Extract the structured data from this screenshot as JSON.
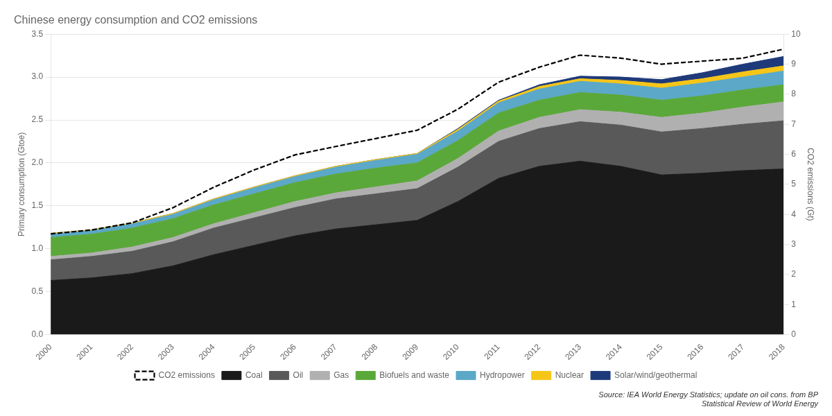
{
  "chart_data": {
    "type": "area",
    "title": "Chinese energy consumption and CO2 emissions",
    "x_label": null,
    "y_label": "Primary consumption (Gtoe)",
    "y2_label": "CO2 emissions (Gt)",
    "annotations": [
      "Source: IEA World Energy Statistics; update on oil cons. from BP",
      "Statistical Review of World Energy"
    ],
    "x": [
      2000,
      2001,
      2002,
      2003,
      2004,
      2005,
      2006,
      2007,
      2008,
      2009,
      2010,
      2011,
      2012,
      2013,
      2014,
      2015,
      2016,
      2017,
      2018
    ],
    "xlim": [
      2000,
      2018
    ],
    "xticks": [
      2000,
      2001,
      2002,
      2003,
      2004,
      2005,
      2006,
      2007,
      2008,
      2009,
      2010,
      2011,
      2012,
      2013,
      2014,
      2015,
      2016,
      2017,
      2018
    ],
    "ylim": [
      0,
      3.5
    ],
    "yticks": [
      {
        "value": 0,
        "label": "0.0"
      },
      0.5,
      {
        "value": 1,
        "label": "1.0"
      },
      1.5,
      {
        "value": 2,
        "label": "2.0"
      },
      2.5,
      {
        "value": 3,
        "label": "3.0"
      },
      3.5
    ],
    "y2lim": [
      0,
      10
    ],
    "y2ticks": [
      0,
      1,
      2,
      3,
      4,
      5,
      6,
      7,
      8,
      9,
      10
    ],
    "stacked": true,
    "grid": true,
    "legend": "bottom",
    "series": [
      {
        "name": "Coal",
        "color": "#1a1a1a",
        "values": [
          0.63,
          0.66,
          0.71,
          0.8,
          0.93,
          1.04,
          1.15,
          1.23,
          1.28,
          1.33,
          1.55,
          1.82,
          1.96,
          2.02,
          1.96,
          1.86,
          1.88,
          1.91,
          1.93
        ]
      },
      {
        "name": "Oil",
        "color": "#595959",
        "values": [
          0.24,
          0.25,
          0.26,
          0.28,
          0.31,
          0.32,
          0.33,
          0.35,
          0.36,
          0.37,
          0.4,
          0.43,
          0.44,
          0.46,
          0.48,
          0.5,
          0.52,
          0.54,
          0.56
        ]
      },
      {
        "name": "Gas",
        "color": "#b0b0b0",
        "values": [
          0.04,
          0.04,
          0.05,
          0.05,
          0.05,
          0.06,
          0.07,
          0.07,
          0.08,
          0.09,
          0.1,
          0.12,
          0.13,
          0.14,
          0.15,
          0.17,
          0.18,
          0.2,
          0.22
        ]
      },
      {
        "name": "Biofuels and waste",
        "color": "#5ba83a",
        "values": [
          0.22,
          0.22,
          0.22,
          0.22,
          0.22,
          0.22,
          0.22,
          0.22,
          0.22,
          0.21,
          0.21,
          0.21,
          0.2,
          0.2,
          0.2,
          0.2,
          0.2,
          0.2,
          0.2
        ]
      },
      {
        "name": "Hydropower",
        "color": "#5ba8c8",
        "values": [
          0.04,
          0.04,
          0.05,
          0.05,
          0.06,
          0.07,
          0.07,
          0.08,
          0.09,
          0.1,
          0.11,
          0.12,
          0.13,
          0.13,
          0.13,
          0.14,
          0.15,
          0.15,
          0.16
        ]
      },
      {
        "name": "Nuclear",
        "color": "#f5c518",
        "values": [
          0.01,
          0.01,
          0.01,
          0.01,
          0.01,
          0.01,
          0.01,
          0.01,
          0.01,
          0.01,
          0.02,
          0.02,
          0.03,
          0.03,
          0.04,
          0.05,
          0.05,
          0.06,
          0.06
        ]
      },
      {
        "name": "Solar/wind/geothermal",
        "color": "#1f3a7a",
        "values": [
          0.0,
          0.0,
          0.0,
          0.0,
          0.0,
          0.0,
          0.0,
          0.0,
          0.0,
          0.0,
          0.01,
          0.01,
          0.02,
          0.03,
          0.04,
          0.05,
          0.07,
          0.09,
          0.11
        ]
      },
      {
        "name": "CO2 emissions",
        "color": "#000000",
        "type": "line",
        "line_style": "dashed",
        "axis": "y2",
        "values": [
          3.35,
          3.48,
          3.72,
          4.22,
          4.9,
          5.48,
          5.98,
          6.26,
          6.53,
          6.8,
          7.5,
          8.4,
          8.9,
          9.3,
          9.2,
          9.0,
          9.1,
          9.2,
          9.5
        ]
      }
    ]
  }
}
